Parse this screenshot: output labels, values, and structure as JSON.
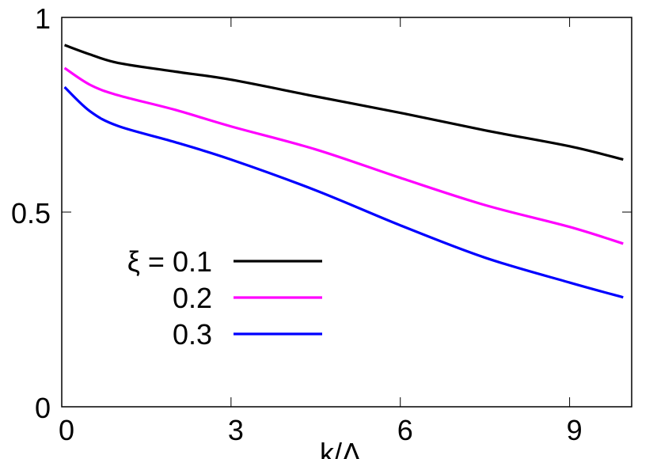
{
  "chart_data": {
    "type": "line",
    "title": "",
    "xlabel": "k/Λ",
    "ylabel": "",
    "xlim": [
      0,
      10.1
    ],
    "ylim": [
      0,
      1
    ],
    "xticks": [
      "0",
      "3",
      "6",
      "9"
    ],
    "xtick_values": [
      0,
      3,
      6,
      9
    ],
    "yticks": [
      "0",
      "0.5",
      "1"
    ],
    "ytick_values": [
      0,
      0.5,
      1
    ],
    "grid": false,
    "legend": {
      "placement": "center-left",
      "prefix": "ξ = "
    },
    "series": [
      {
        "name": "0.1",
        "legend_label": "ξ = 0.1",
        "color": "#000000",
        "x": [
          0.05,
          0.5,
          1,
          2,
          3,
          4.5,
          6,
          7.5,
          9,
          9.95
        ],
        "y": [
          0.929,
          0.905,
          0.883,
          0.861,
          0.84,
          0.797,
          0.755,
          0.71,
          0.669,
          0.635
        ]
      },
      {
        "name": "0.2",
        "legend_label": "0.2",
        "color": "#ff00ff",
        "x": [
          0.05,
          0.5,
          1,
          2,
          3,
          4.5,
          6,
          7.5,
          9,
          9.95
        ],
        "y": [
          0.87,
          0.827,
          0.8,
          0.763,
          0.72,
          0.661,
          0.588,
          0.518,
          0.462,
          0.419
        ]
      },
      {
        "name": "0.3",
        "legend_label": "0.3",
        "color": "#0000ff",
        "x": [
          0.05,
          0.5,
          1,
          2,
          3,
          4.5,
          6,
          7.5,
          9,
          9.95
        ],
        "y": [
          0.821,
          0.759,
          0.721,
          0.68,
          0.635,
          0.556,
          0.466,
          0.383,
          0.319,
          0.281
        ]
      }
    ]
  }
}
